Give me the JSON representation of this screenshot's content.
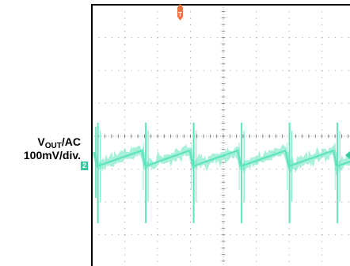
{
  "chart_data": {
    "type": "line",
    "title": "",
    "series": [
      {
        "name": "",
        "color": "#5fe3bc"
      }
    ],
    "ylabel_main": "V",
    "ylabel_sub": "OUT",
    "ylabel_suffix": "/AC",
    "scale_label": "100mV/div.",
    "channel_marker": "2",
    "trigger_marker": "T",
    "grid": true,
    "colors": {
      "trace": "#5fe3bc",
      "trigger": "#e8743b",
      "grid": "#7a7a7a",
      "frame": "#000000"
    }
  }
}
